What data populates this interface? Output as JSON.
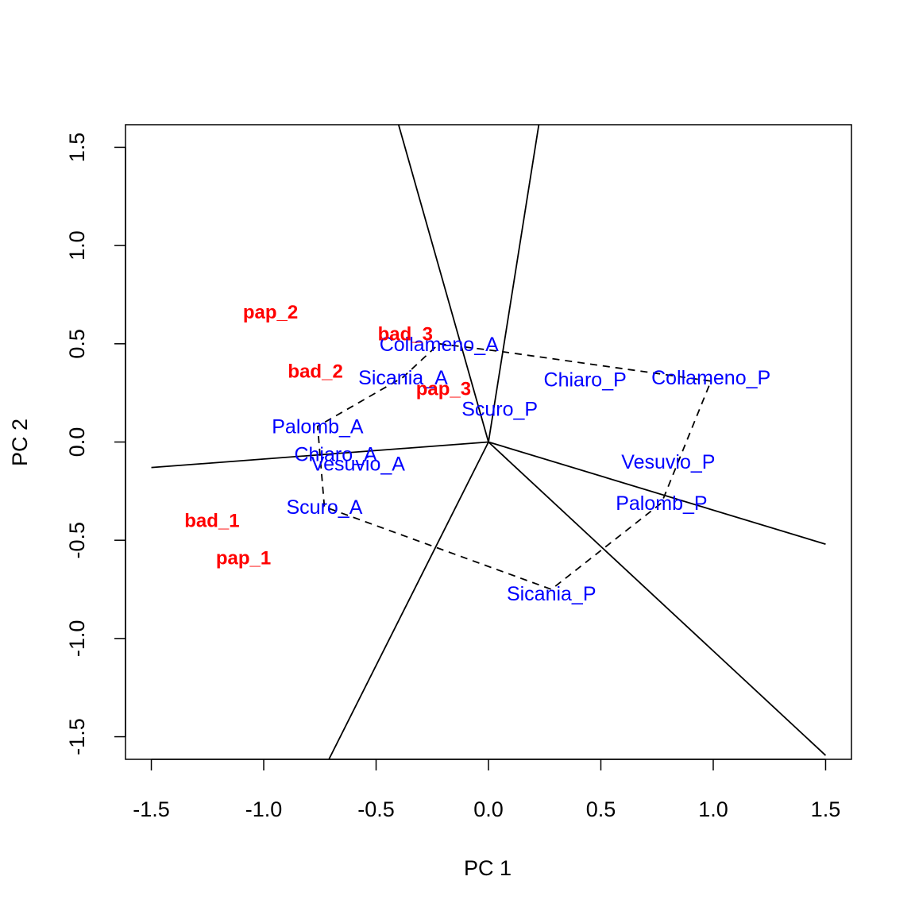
{
  "chart_data": {
    "type": "scatter",
    "title": "",
    "xlabel": "PC 1",
    "ylabel": "PC 2",
    "xlim": [
      -1.615,
      1.615
    ],
    "ylim": [
      -1.615,
      1.615
    ],
    "x_ticks": [
      "-1.5",
      "-1.0",
      "-0.5",
      "0.0",
      "0.5",
      "1.0",
      "1.5"
    ],
    "x_tick_values": [
      -1.5,
      -1.0,
      -0.5,
      0.0,
      0.5,
      1.0,
      1.5
    ],
    "y_ticks": [
      "-1.5",
      "-1.0",
      "-0.5",
      "0.0",
      "0.5",
      "1.0",
      "1.5"
    ],
    "y_tick_values": [
      -1.5,
      -1.0,
      -0.5,
      0.0,
      0.5,
      1.0,
      1.5
    ],
    "grid": false,
    "legend": "none",
    "colors": {
      "environments": "#0000ff",
      "genotypes": "#ff0000",
      "lines": "#000000"
    },
    "environments": [
      {
        "label": "Collameno_A",
        "x": -0.22,
        "y": 0.5
      },
      {
        "label": "Sicania_A",
        "x": -0.38,
        "y": 0.33
      },
      {
        "label": "Chiaro_P",
        "x": 0.43,
        "y": 0.32
      },
      {
        "label": "Collameno_P",
        "x": 0.99,
        "y": 0.33
      },
      {
        "label": "Scuro_P",
        "x": 0.05,
        "y": 0.17
      },
      {
        "label": "Palomb_A",
        "x": -0.76,
        "y": 0.08
      },
      {
        "label": "Chiaro_A",
        "x": -0.68,
        "y": -0.06
      },
      {
        "label": "Vesuvio_A",
        "x": -0.58,
        "y": -0.11
      },
      {
        "label": "Vesuvio_P",
        "x": 0.8,
        "y": -0.1
      },
      {
        "label": "Scuro_A",
        "x": -0.73,
        "y": -0.33
      },
      {
        "label": "Palomb_P",
        "x": 0.77,
        "y": -0.31
      },
      {
        "label": "Sicania_P",
        "x": 0.28,
        "y": -0.77
      }
    ],
    "genotypes": [
      {
        "label": "pap_2",
        "x": -0.97,
        "y": 0.66
      },
      {
        "label": "bad_3",
        "x": -0.37,
        "y": 0.55
      },
      {
        "label": "bad_2",
        "x": -0.77,
        "y": 0.36
      },
      {
        "label": "pap_3",
        "x": -0.2,
        "y": 0.27
      },
      {
        "label": "bad_1",
        "x": -1.23,
        "y": -0.4
      },
      {
        "label": "pap_1",
        "x": -1.09,
        "y": -0.59
      }
    ],
    "hull": [
      [
        -0.22,
        0.5
      ],
      [
        0.06,
        0.46
      ],
      [
        0.99,
        0.31
      ],
      [
        0.77,
        -0.31
      ],
      [
        0.28,
        -0.75
      ],
      [
        -0.73,
        -0.33
      ],
      [
        -0.76,
        0.08
      ],
      [
        -0.38,
        0.33
      ]
    ],
    "sector_lines": [
      {
        "to": [
          -0.4,
          1.615
        ]
      },
      {
        "to": [
          0.224,
          1.615
        ]
      },
      {
        "to": [
          -1.5,
          -0.13
        ]
      },
      {
        "to": [
          -0.71,
          -1.615
        ]
      },
      {
        "to": [
          1.5,
          -0.52
        ]
      },
      {
        "to": [
          1.5,
          -1.595
        ]
      }
    ]
  }
}
